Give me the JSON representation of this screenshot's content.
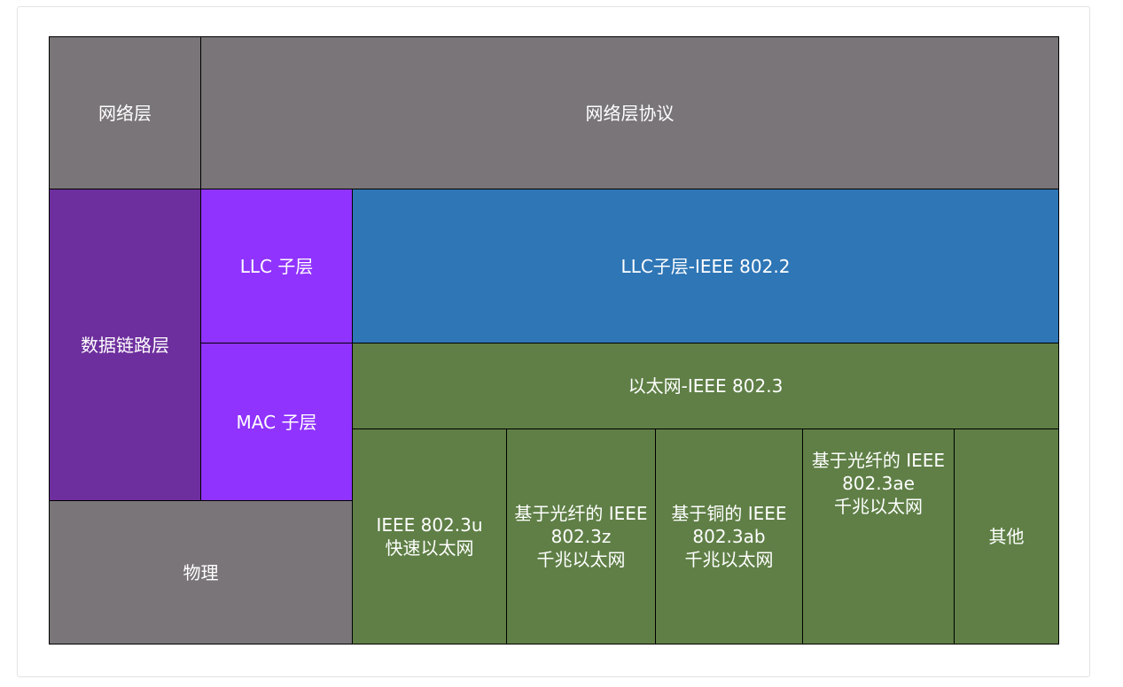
{
  "colors": {
    "gray": "#7a7578",
    "purple": "#6e2f9e",
    "violet": "#9033ff",
    "blue": "#2f76b6",
    "green": "#5f7f46"
  },
  "network_layer": {
    "label": "网络层",
    "protocol": "网络层协议"
  },
  "data_link_layer": {
    "label": "数据链路层",
    "llc_sublayer": "LLC 子层",
    "mac_sublayer": "MAC 子层",
    "llc_standard": "LLC子层-IEEE 802.2",
    "ethernet_standard": "以太网-IEEE 802.3"
  },
  "physical_layer": {
    "label": "物理",
    "standards": [
      "IEEE 802.3u\n快速以太网",
      "基于光纤的 IEEE\n802.3z\n千兆以太网",
      "基于铜的 IEEE\n802.3ab\n千兆以太网",
      "基于光纤的 IEEE\n802.3ae\n千兆以太网",
      "其他"
    ]
  }
}
